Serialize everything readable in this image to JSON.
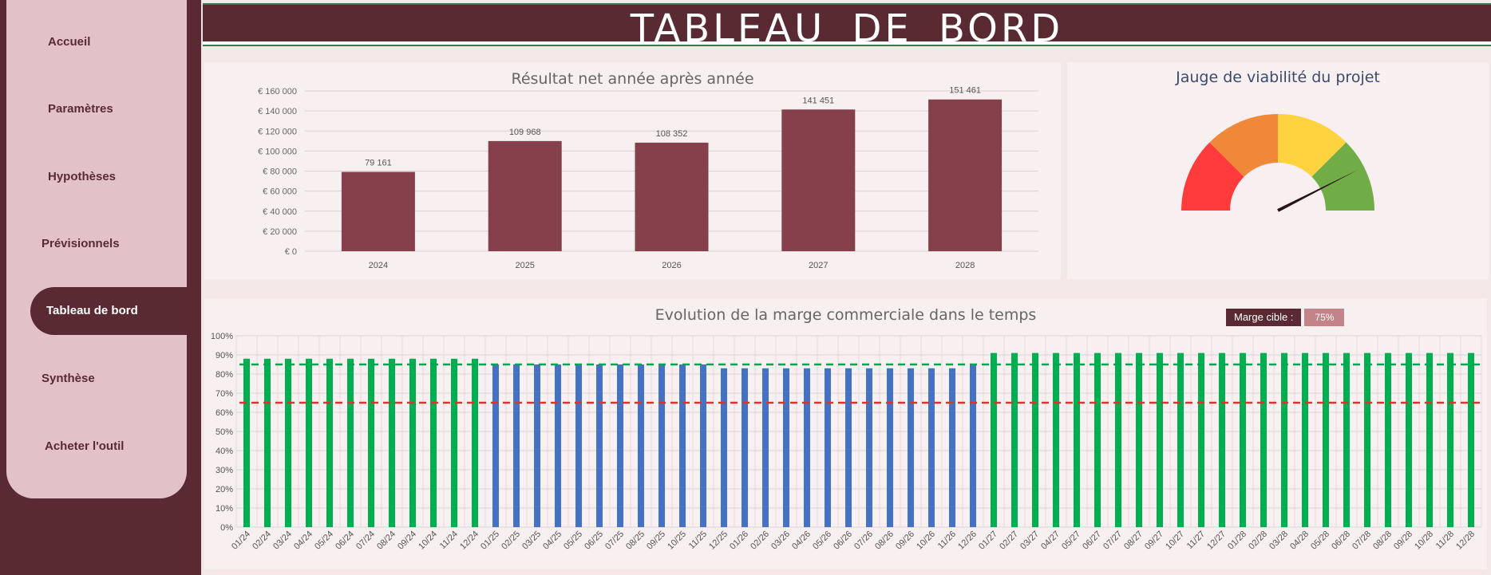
{
  "sidebar": {
    "items": [
      {
        "label": "Accueil",
        "active": false
      },
      {
        "label": "Paramètres",
        "active": false
      },
      {
        "label": "Hypothèses",
        "active": false
      },
      {
        "label": "Prévisionnels",
        "active": false
      },
      {
        "label": "Tableau de bord",
        "active": true
      },
      {
        "label": "Synthèse",
        "active": false
      },
      {
        "label": "Acheter l'outil",
        "active": false
      }
    ]
  },
  "header": {
    "title": "TABLEAU DE BORD"
  },
  "colors": {
    "brand": "#5a2a33",
    "bar": "#85404c",
    "green": "#00b050",
    "blue": "#4472c4",
    "red_line": "#e03030",
    "green_line": "#00a651"
  },
  "chart_data": [
    {
      "type": "bar",
      "title": "Résultat net année après année",
      "categories": [
        "2024",
        "2025",
        "2026",
        "2027",
        "2028"
      ],
      "values": [
        79161,
        109968,
        108352,
        141451,
        151461
      ],
      "data_labels": [
        "79 161",
        "109 968",
        "108 352",
        "141 451",
        "151 461"
      ],
      "ylim": [
        0,
        160000
      ],
      "yticks": [
        "€ 0",
        "€ 20 000",
        "€ 40 000",
        "€ 60 000",
        "€ 80 000",
        "€ 100 000",
        "€ 120 000",
        "€ 140 000",
        "€ 160 000"
      ],
      "grid": true
    },
    {
      "type": "gauge",
      "title": "Jauge de viabilité du projet",
      "segments": [
        {
          "color": "#ff3b3b",
          "fraction": 0.25
        },
        {
          "color": "#f0883a",
          "fraction": 0.25
        },
        {
          "color": "#ffd23f",
          "fraction": 0.25
        },
        {
          "color": "#70ad47",
          "fraction": 0.25
        }
      ],
      "needle_value": 0.85
    },
    {
      "type": "bar",
      "title": "Evolution de la marge commerciale dans le temps",
      "categories": [
        "01/24",
        "02/24",
        "03/24",
        "04/24",
        "05/24",
        "06/24",
        "07/24",
        "08/24",
        "09/24",
        "10/24",
        "11/24",
        "12/24",
        "01/25",
        "02/25",
        "03/25",
        "04/25",
        "05/25",
        "06/25",
        "07/25",
        "08/25",
        "09/25",
        "10/25",
        "11/25",
        "12/25",
        "01/26",
        "02/26",
        "03/26",
        "04/26",
        "05/26",
        "06/26",
        "07/26",
        "08/26",
        "09/26",
        "10/26",
        "11/26",
        "12/26",
        "01/27",
        "02/27",
        "03/27",
        "04/27",
        "05/27",
        "06/27",
        "07/27",
        "08/27",
        "09/27",
        "10/27",
        "11/27",
        "12/27",
        "01/28",
        "02/28",
        "03/28",
        "04/28",
        "05/28",
        "06/28",
        "07/28",
        "08/28",
        "09/28",
        "10/28",
        "11/28",
        "12/28"
      ],
      "values": [
        88,
        88,
        88,
        88,
        88,
        88,
        88,
        88,
        88,
        88,
        88,
        88,
        85,
        85,
        85,
        85,
        85,
        85,
        85,
        85,
        85,
        85,
        85,
        83,
        83,
        83,
        83,
        83,
        83,
        83,
        83,
        83,
        83,
        83,
        83,
        85,
        91,
        91,
        91,
        91,
        91,
        91,
        91,
        91,
        91,
        91,
        91,
        91,
        91,
        91,
        91,
        91,
        91,
        91,
        91,
        91,
        91,
        91,
        91,
        91
      ],
      "bar_colors": [
        "green",
        "green",
        "green",
        "green",
        "green",
        "green",
        "green",
        "green",
        "green",
        "green",
        "green",
        "green",
        "blue",
        "blue",
        "blue",
        "blue",
        "blue",
        "blue",
        "blue",
        "blue",
        "blue",
        "blue",
        "blue",
        "blue",
        "blue",
        "blue",
        "blue",
        "blue",
        "blue",
        "blue",
        "blue",
        "blue",
        "blue",
        "blue",
        "blue",
        "blue",
        "green",
        "green",
        "green",
        "green",
        "green",
        "green",
        "green",
        "green",
        "green",
        "green",
        "green",
        "green",
        "green",
        "green",
        "green",
        "green",
        "green",
        "green",
        "green",
        "green",
        "green",
        "green",
        "green",
        "green"
      ],
      "reference_lines": [
        {
          "value": 85,
          "color": "#00a651"
        },
        {
          "value": 65,
          "color": "#e03030"
        }
      ],
      "ylim": [
        0,
        100
      ],
      "yticks": [
        "0%",
        "10%",
        "20%",
        "30%",
        "40%",
        "50%",
        "60%",
        "70%",
        "80%",
        "90%",
        "100%"
      ],
      "grid": true,
      "target": {
        "label": "Marge cible :",
        "value": "75%"
      }
    }
  ]
}
